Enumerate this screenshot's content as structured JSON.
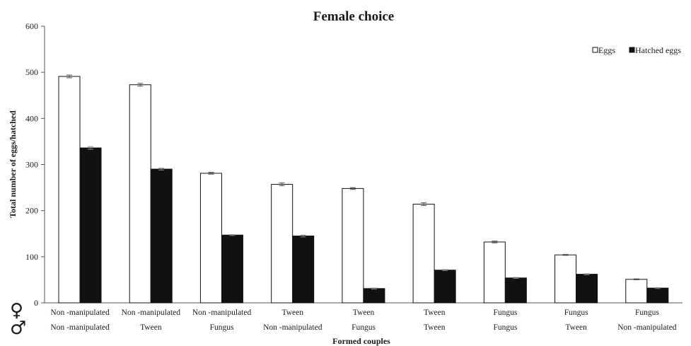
{
  "chart_data": {
    "type": "bar",
    "title": "Female choice",
    "xlabel": "Formed  couples",
    "ylabel": "Total number  of eggs/hatched",
    "ylim": [
      0,
      600
    ],
    "yticks": [
      "0",
      "100",
      "200",
      "300",
      "400",
      "500",
      "600"
    ],
    "female_symbol": "♀",
    "male_symbol": "♂",
    "categories": [
      {
        "female": "Non -manipulated",
        "male": "Non -manipulated"
      },
      {
        "female": "Non -manipulated",
        "male": "Tween"
      },
      {
        "female": "Non -manipulated",
        "male": "Fungus"
      },
      {
        "female": "Tween",
        "male": "Non -manipulated"
      },
      {
        "female": "Tween",
        "male": "Fungus"
      },
      {
        "female": "Tween",
        "male": "Tween"
      },
      {
        "female": "Fungus",
        "male": "Fungus"
      },
      {
        "female": "Fungus",
        "male": "Tween"
      },
      {
        "female": "Fungus",
        "male": "Non -manipulated"
      }
    ],
    "series": [
      {
        "name": "Eggs",
        "color": "#ffffff",
        "values": [
          491,
          473,
          281,
          257,
          248,
          214,
          132,
          104,
          51
        ],
        "errors": [
          3,
          3,
          2,
          3,
          2,
          3,
          2,
          1,
          1
        ]
      },
      {
        "name": "Hatched eggs",
        "color": "#111111",
        "values": [
          336,
          290,
          147,
          145,
          31,
          71,
          54,
          62,
          32
        ],
        "errors": [
          3,
          2,
          1,
          2,
          1,
          1,
          1,
          1,
          1
        ]
      }
    ],
    "legend_position": "top-right",
    "grid": false
  }
}
